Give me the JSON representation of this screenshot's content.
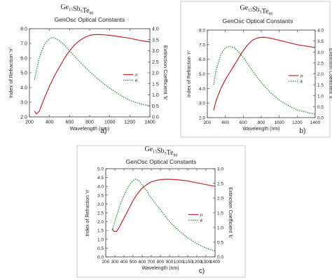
{
  "figure": {
    "panel_labels": [
      "a)",
      "b)",
      "c)"
    ]
  },
  "chart_data": [
    {
      "type": "line",
      "panel": "a)",
      "formula": {
        "ge": "Ge",
        "ge_sub": "15",
        "sb": "Sb",
        "sb_sub": "5",
        "te": "Te",
        "te_sub": "80"
      },
      "title": "GenOsc Optical Constants",
      "xlabel": "Wavelength (nm)",
      "ylabel_left": "Index of Refraction 'n'",
      "ylabel_right": "Extinction Coefficient 'k'",
      "xlim": [
        200,
        1400
      ],
      "ylim_left": [
        2.0,
        8.0
      ],
      "ylim_right": [
        0.0,
        4.0
      ],
      "xticks": [
        200,
        400,
        600,
        800,
        1000,
        1200,
        1400
      ],
      "yticks_left": [
        "2.0",
        "3.0",
        "4.0",
        "5.0",
        "6.0",
        "7.0",
        "8.0"
      ],
      "yticks_right": [
        "0.0",
        "0.5",
        "1.0",
        "1.5",
        "2.0",
        "2.5",
        "3.0",
        "3.5",
        "4.0"
      ],
      "legend": {
        "position": "right",
        "items": [
          "n",
          "k"
        ]
      },
      "series": [
        {
          "name": "n",
          "axis": "left",
          "color": "#c0282d",
          "dash": "solid",
          "x": [
            250,
            270,
            300,
            350,
            400,
            450,
            500,
            550,
            600,
            650,
            700,
            750,
            800,
            850,
            900,
            950,
            1000,
            1100,
            1200,
            1300,
            1400
          ],
          "y": [
            2.4,
            2.2,
            2.4,
            3.3,
            4.1,
            4.8,
            5.4,
            6.0,
            6.5,
            6.9,
            7.2,
            7.4,
            7.55,
            7.6,
            7.6,
            7.58,
            7.55,
            7.45,
            7.35,
            7.2,
            7.1
          ]
        },
        {
          "name": "k",
          "axis": "right",
          "color": "#2e8b3a",
          "dash": "dotted",
          "x": [
            250,
            270,
            300,
            350,
            400,
            430,
            450,
            500,
            550,
            600,
            650,
            700,
            800,
            900,
            1000,
            1100,
            1200,
            1300,
            1400
          ],
          "y": [
            1.7,
            2.1,
            2.7,
            3.3,
            3.55,
            3.6,
            3.58,
            3.45,
            3.25,
            3.0,
            2.75,
            2.5,
            2.05,
            1.65,
            1.3,
            1.0,
            0.75,
            0.6,
            0.5
          ]
        }
      ]
    },
    {
      "type": "line",
      "panel": "b)",
      "formula": {
        "ge": "Ge",
        "ge_sub": "15",
        "sb": "Sb",
        "sb_sub": "5",
        "te": "Te",
        "te_sub": "80"
      },
      "title": "GenOsc Optical Constants",
      "xlabel": "Wavelength (nm)",
      "ylabel_left": "Index of Refraction 'n'",
      "ylabel_right": "Extinction Coefficient 'k'",
      "xlim": [
        200,
        1400
      ],
      "ylim_left": [
        2.0,
        8.0
      ],
      "ylim_right": [
        0.0,
        4.0
      ],
      "xticks": [
        200,
        400,
        600,
        800,
        1000,
        1200,
        1400
      ],
      "yticks_left": [
        "2.0",
        "3.0",
        "4.0",
        "5.0",
        "6.0",
        "7.0",
        "8.0"
      ],
      "yticks_right": [
        "0.0",
        "0.5",
        "1.0",
        "1.5",
        "2.0",
        "2.5",
        "3.0",
        "3.5",
        "4.0"
      ],
      "legend": {
        "position": "right",
        "items": [
          "n",
          "k"
        ]
      },
      "series": [
        {
          "name": "n",
          "axis": "left",
          "color": "#c0282d",
          "dash": "solid",
          "x": [
            270,
            300,
            350,
            400,
            450,
            500,
            550,
            600,
            650,
            700,
            750,
            800,
            850,
            900,
            1000,
            1100,
            1200,
            1300,
            1400
          ],
          "y": [
            2.5,
            3.2,
            4.0,
            4.6,
            5.1,
            5.6,
            6.1,
            6.6,
            7.0,
            7.3,
            7.45,
            7.5,
            7.5,
            7.45,
            7.3,
            7.15,
            7.0,
            6.9,
            6.8
          ]
        },
        {
          "name": "k",
          "axis": "right",
          "color": "#2e8b3a",
          "dash": "dotted",
          "x": [
            270,
            300,
            350,
            400,
            450,
            500,
            550,
            600,
            650,
            700,
            800,
            900,
            1000,
            1100,
            1200,
            1300,
            1400
          ],
          "y": [
            1.5,
            2.2,
            2.9,
            3.2,
            3.25,
            3.2,
            3.0,
            2.75,
            2.45,
            2.15,
            1.6,
            1.15,
            0.8,
            0.55,
            0.35,
            0.25,
            0.15
          ]
        }
      ]
    },
    {
      "type": "line",
      "panel": "c)",
      "formula": {
        "ge": "Ge",
        "ge_sub": "15",
        "sb": "Sb",
        "sb_sub": "5",
        "te": "Te",
        "te_sub": "80"
      },
      "title": "GenOsc Optical Constants",
      "xlabel": "Wavelength (nm)",
      "ylabel_left": "Index of Refraction 'n'",
      "ylabel_right": "Extinction Coefficient 'k'",
      "xlim": [
        200,
        1400
      ],
      "ylim_left": [
        0.0,
        5.0
      ],
      "ylim_right": [
        0.0,
        3.0
      ],
      "xticks": [
        200,
        300,
        400,
        500,
        600,
        700,
        800,
        900,
        1000,
        1100,
        1200,
        1300,
        1400
      ],
      "yticks_left": [
        "0.0",
        "0.5",
        "1.0",
        "1.5",
        "2.0",
        "2.5",
        "3.0",
        "3.5",
        "4.0",
        "4.5",
        "5.0"
      ],
      "yticks_right": [
        "0.0",
        "0.5",
        "1.0",
        "1.5",
        "2.0",
        "2.5",
        "3.0"
      ],
      "legend": {
        "position": "right",
        "items": [
          "n",
          "k"
        ]
      },
      "series": [
        {
          "name": "n",
          "axis": "left",
          "color": "#c0282d",
          "dash": "solid",
          "x": [
            270,
            290,
            320,
            350,
            400,
            450,
            500,
            550,
            600,
            650,
            700,
            750,
            800,
            850,
            900,
            1000,
            1100,
            1200,
            1300,
            1400
          ],
          "y": [
            1.6,
            1.45,
            1.45,
            1.7,
            2.2,
            2.7,
            3.2,
            3.6,
            3.9,
            4.1,
            4.25,
            4.33,
            4.38,
            4.4,
            4.4,
            4.37,
            4.3,
            4.2,
            4.1,
            4.0
          ]
        },
        {
          "name": "k",
          "axis": "right",
          "color": "#2e8b3a",
          "dash": "dotted",
          "x": [
            270,
            300,
            350,
            400,
            450,
            500,
            530,
            560,
            600,
            650,
            700,
            800,
            900,
            1000,
            1100,
            1200,
            1300,
            1400
          ],
          "y": [
            0.9,
            1.2,
            1.7,
            2.1,
            2.4,
            2.6,
            2.65,
            2.6,
            2.45,
            2.25,
            2.0,
            1.6,
            1.2,
            0.9,
            0.65,
            0.45,
            0.3,
            0.2
          ]
        }
      ]
    }
  ]
}
